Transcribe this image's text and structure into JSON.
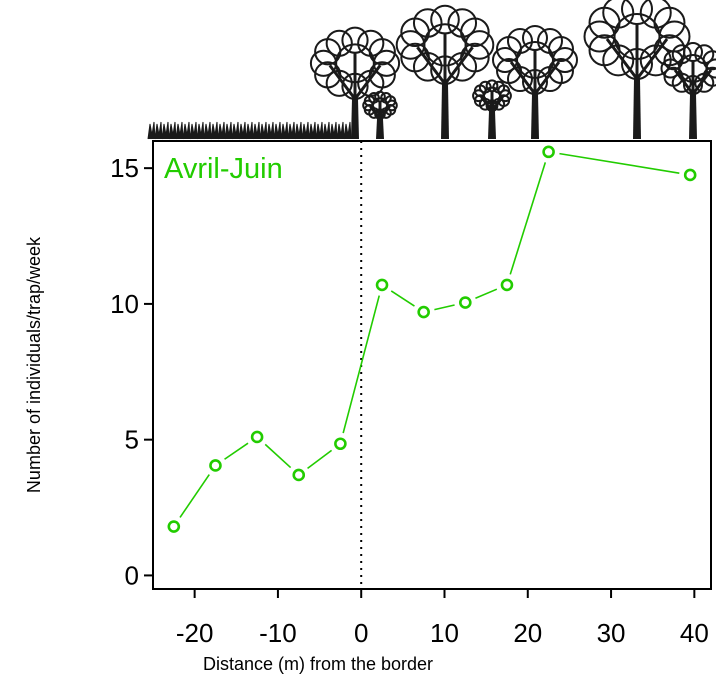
{
  "chart_data": {
    "type": "line",
    "title": "",
    "panel_label": "Avril-Juin",
    "xlabel": "Distance (m) from the border",
    "ylabel": "Number of individuals/trap/week",
    "xlim": [
      -25,
      42
    ],
    "ylim": [
      -0.5,
      16
    ],
    "x_ticks": [
      -20,
      -10,
      0,
      10,
      20,
      30,
      40
    ],
    "y_ticks": [
      0,
      5,
      10,
      15
    ],
    "border_line_x": 0,
    "grid": false,
    "legend": "none",
    "series": [
      {
        "x": [
          -22.5,
          -17.5,
          -12.5,
          -7.5,
          -2.5,
          2.5,
          7.5,
          12.5,
          17.5,
          22.5,
          39.5
        ],
        "values": [
          1.8,
          4.05,
          5.1,
          3.7,
          4.85,
          10.7,
          9.7,
          10.05,
          10.7,
          15.6,
          14.75
        ]
      }
    ],
    "colors": {
      "series": "#22cc00",
      "axis": "#000000",
      "vegetation": "#1a1a1a"
    },
    "decorations": [
      "grass-silhouette",
      "tree-silhouettes"
    ]
  }
}
